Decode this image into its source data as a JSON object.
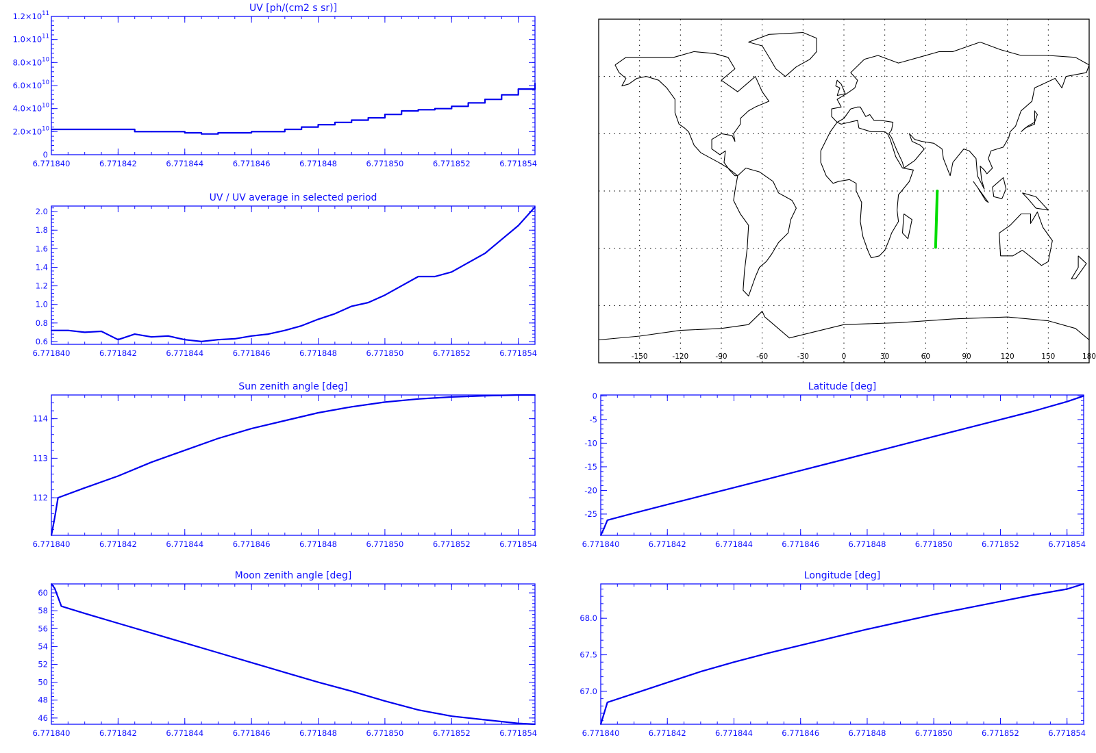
{
  "x_tick_labels": [
    "6.771840",
    "6.771842",
    "6.771844",
    "6.771846",
    "6.771848",
    "6.771850",
    "6.771852",
    "6.771854"
  ],
  "chart_data": [
    {
      "id": "uv",
      "type": "line",
      "title": "UV [ph/(cm2 s sr)]",
      "xlim": [
        6.77184,
        6.7718545
      ],
      "ylim": [
        0,
        120000000000.0
      ],
      "yticks": [
        0,
        20000000000.0,
        40000000000.0,
        60000000000.0,
        80000000000.0,
        100000000000.0,
        120000000000.0
      ],
      "ytick_labels": [
        {
          "m": "0",
          "e": ""
        },
        {
          "m": "2.0×10",
          "e": "10"
        },
        {
          "m": "4.0×10",
          "e": "10"
        },
        {
          "m": "6.0×10",
          "e": "10"
        },
        {
          "m": "8.0×10",
          "e": "10"
        },
        {
          "m": "1.0×10",
          "e": "11"
        },
        {
          "m": "1.2×10",
          "e": "11"
        }
      ],
      "step": true,
      "x": [
        6.77184,
        6.771841,
        6.7718415,
        6.7718425,
        6.771843,
        6.771844,
        6.7718445,
        6.771845,
        6.771846,
        6.771847,
        6.7718475,
        6.771848,
        6.7718485,
        6.771849,
        6.7718495,
        6.77185,
        6.7718505,
        6.771851,
        6.7718515,
        6.771852,
        6.7718525,
        6.771853,
        6.7718535,
        6.771854,
        6.7718545
      ],
      "y": [
        22000000000.0,
        22000000000.0,
        22000000000.0,
        20000000000.0,
        20000000000.0,
        19000000000.0,
        18000000000.0,
        19000000000.0,
        20000000000.0,
        22000000000.0,
        24000000000.0,
        26000000000.0,
        28000000000.0,
        30000000000.0,
        32000000000.0,
        35000000000.0,
        38000000000.0,
        39000000000.0,
        40000000000.0,
        42000000000.0,
        45000000000.0,
        48000000000.0,
        52000000000.0,
        57000000000.0,
        62000000000.0
      ]
    },
    {
      "id": "uvratio",
      "type": "line",
      "title": "UV / UV average in selected period",
      "xlim": [
        6.77184,
        6.7718545
      ],
      "ylim": [
        0.57,
        2.06
      ],
      "yticks": [
        0.6,
        0.8,
        1.0,
        1.2,
        1.4,
        1.6,
        1.8,
        2.0
      ],
      "ytick_labels": [
        {
          "m": "0.6"
        },
        {
          "m": "0.8"
        },
        {
          "m": "1.0"
        },
        {
          "m": "1.2"
        },
        {
          "m": "1.4"
        },
        {
          "m": "1.6"
        },
        {
          "m": "1.8"
        },
        {
          "m": "2.0"
        }
      ],
      "x": [
        6.77184,
        6.7718405,
        6.771841,
        6.7718415,
        6.771842,
        6.7718425,
        6.771843,
        6.7718435,
        6.771844,
        6.7718445,
        6.771845,
        6.7718455,
        6.771846,
        6.7718465,
        6.771847,
        6.7718475,
        6.771848,
        6.7718485,
        6.771849,
        6.7718495,
        6.77185,
        6.7718505,
        6.771851,
        6.7718515,
        6.771852,
        6.7718525,
        6.771853,
        6.7718535,
        6.771854,
        6.7718545
      ],
      "y": [
        0.72,
        0.72,
        0.7,
        0.71,
        0.62,
        0.68,
        0.65,
        0.66,
        0.62,
        0.6,
        0.62,
        0.63,
        0.66,
        0.68,
        0.72,
        0.77,
        0.84,
        0.9,
        0.98,
        1.02,
        1.1,
        1.2,
        1.3,
        1.3,
        1.35,
        1.45,
        1.55,
        1.7,
        1.85,
        2.05
      ]
    },
    {
      "id": "sza",
      "type": "line",
      "title": "Sun zenith angle [deg]",
      "xlim": [
        6.77184,
        6.7718545
      ],
      "ylim": [
        111.05,
        114.6
      ],
      "yticks": [
        112,
        113,
        114
      ],
      "ytick_labels": [
        {
          "m": "112"
        },
        {
          "m": "113"
        },
        {
          "m": "114"
        }
      ],
      "x": [
        6.77184,
        6.7718401,
        6.7718402,
        6.771841,
        6.771842,
        6.771843,
        6.771844,
        6.771845,
        6.771846,
        6.771847,
        6.771848,
        6.771849,
        6.77185,
        6.771851,
        6.771852,
        6.771853,
        6.771854,
        6.7718545
      ],
      "y": [
        111.05,
        111.5,
        112.0,
        112.25,
        112.55,
        112.9,
        113.2,
        113.5,
        113.75,
        113.95,
        114.15,
        114.3,
        114.42,
        114.5,
        114.55,
        114.58,
        114.6,
        114.6
      ]
    },
    {
      "id": "lat",
      "type": "line",
      "title": "Latitude [deg]",
      "xlim": [
        6.77184,
        6.7718545
      ],
      "ylim": [
        -29.5,
        0.2
      ],
      "yticks": [
        -25,
        -20,
        -15,
        -10,
        -5,
        0
      ],
      "ytick_labels": [
        {
          "m": "-25"
        },
        {
          "m": "-20"
        },
        {
          "m": "-15"
        },
        {
          "m": "-10"
        },
        {
          "m": "-5"
        },
        {
          "m": "0"
        }
      ],
      "x": [
        6.77184,
        6.7718401,
        6.7718402,
        6.771841,
        6.771842,
        6.771843,
        6.771844,
        6.771845,
        6.771846,
        6.771847,
        6.771848,
        6.771849,
        6.77185,
        6.771851,
        6.771852,
        6.771853,
        6.771854,
        6.7718545
      ],
      "y": [
        -29.5,
        -28,
        -26.3,
        -24.8,
        -23,
        -21.2,
        -19.4,
        -17.6,
        -15.8,
        -14,
        -12.2,
        -10.4,
        -8.6,
        -6.8,
        -5,
        -3.2,
        -1.2,
        0
      ]
    },
    {
      "id": "mza",
      "type": "line",
      "title": "Moon zenith angle [deg]",
      "xlim": [
        6.77184,
        6.7718545
      ],
      "ylim": [
        45.3,
        61.0
      ],
      "yticks": [
        46,
        48,
        50,
        52,
        54,
        56,
        58,
        60
      ],
      "ytick_labels": [
        {
          "m": "46"
        },
        {
          "m": "48"
        },
        {
          "m": "50"
        },
        {
          "m": "52"
        },
        {
          "m": "54"
        },
        {
          "m": "56"
        },
        {
          "m": "58"
        },
        {
          "m": "60"
        }
      ],
      "x": [
        6.77184,
        6.7718401,
        6.7718403,
        6.771841,
        6.771842,
        6.771843,
        6.771844,
        6.771845,
        6.771846,
        6.771847,
        6.771848,
        6.771849,
        6.77185,
        6.771851,
        6.771852,
        6.771853,
        6.771854,
        6.7718545
      ],
      "y": [
        61.0,
        60.5,
        58.5,
        57.7,
        56.6,
        55.5,
        54.4,
        53.3,
        52.2,
        51.1,
        50.0,
        49.0,
        47.9,
        46.9,
        46.2,
        45.8,
        45.4,
        45.3
      ]
    },
    {
      "id": "lon",
      "type": "line",
      "title": "Longitude [deg]",
      "xlim": [
        6.77184,
        6.7718545
      ],
      "ylim": [
        66.55,
        68.47
      ],
      "yticks": [
        67.0,
        67.5,
        68.0
      ],
      "ytick_labels": [
        {
          "m": "67.0"
        },
        {
          "m": "67.5"
        },
        {
          "m": "68.0"
        }
      ],
      "x": [
        6.77184,
        6.7718401,
        6.7718402,
        6.771841,
        6.771842,
        6.771843,
        6.771844,
        6.771845,
        6.771846,
        6.771847,
        6.771848,
        6.771849,
        6.77185,
        6.771851,
        6.771852,
        6.771853,
        6.771854,
        6.7718545
      ],
      "y": [
        66.55,
        66.7,
        66.85,
        66.97,
        67.12,
        67.27,
        67.4,
        67.52,
        67.63,
        67.74,
        67.85,
        67.95,
        68.05,
        68.14,
        68.23,
        68.32,
        68.4,
        68.47
      ]
    }
  ],
  "map": {
    "xtick_labels": [
      "-150",
      "-120",
      "-90",
      "-60",
      "-30",
      "0",
      "30",
      "60",
      "90",
      "120",
      "150",
      "180"
    ],
    "xticks": [
      -150,
      -120,
      -90,
      -60,
      -30,
      0,
      30,
      60,
      90,
      120,
      150,
      180
    ],
    "lon_range": [
      -180,
      180
    ],
    "lat_range": [
      -90,
      90
    ],
    "grid_lats": [
      -60,
      -30,
      0,
      30,
      60
    ],
    "track": {
      "lon": [
        67.3,
        68.5
      ],
      "lat": [
        -29.5,
        0
      ],
      "color": "#00dd00"
    }
  }
}
